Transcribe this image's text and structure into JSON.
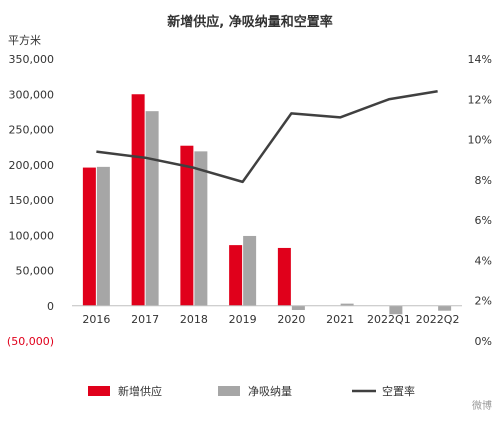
{
  "chart_data": {
    "type": "bar",
    "title": "新增供应, 净吸纳量和空置率",
    "y_left_unit": "平方米",
    "categories": [
      "2016",
      "2017",
      "2018",
      "2019",
      "2020",
      "2021",
      "2022Q1",
      "2022Q2"
    ],
    "y_left_ticks": [
      "350,000",
      "300,000",
      "250,000",
      "200,000",
      "150,000",
      "100,000",
      "50,000",
      "0",
      "(50,000)"
    ],
    "y_left_range": [
      -50000,
      350000
    ],
    "y_right_ticks": [
      "14%",
      "12%",
      "10%",
      "8%",
      "6%",
      "4%",
      "2%",
      "0%"
    ],
    "y_right_range": [
      0,
      14
    ],
    "grid": false,
    "legend_position": "bottom",
    "series": [
      {
        "name": "新增供应",
        "kind": "bar",
        "axis": "left",
        "color": "#e0001b",
        "values": [
          196000,
          300000,
          227000,
          86000,
          82000,
          0,
          0,
          0
        ]
      },
      {
        "name": "净吸纳量",
        "kind": "bar",
        "axis": "left",
        "color": "#a6a6a6",
        "values": [
          197000,
          276000,
          219000,
          99000,
          -6000,
          3000,
          -12000,
          -7000
        ]
      },
      {
        "name": "空置率",
        "kind": "line",
        "axis": "right",
        "color": "#404040",
        "values": [
          9.4,
          9.1,
          8.6,
          7.9,
          11.3,
          11.1,
          12.0,
          12.4
        ]
      }
    ]
  },
  "colors": {
    "negative_tick": "#e0001b",
    "axis_text": "#333333"
  },
  "watermark": "微博"
}
